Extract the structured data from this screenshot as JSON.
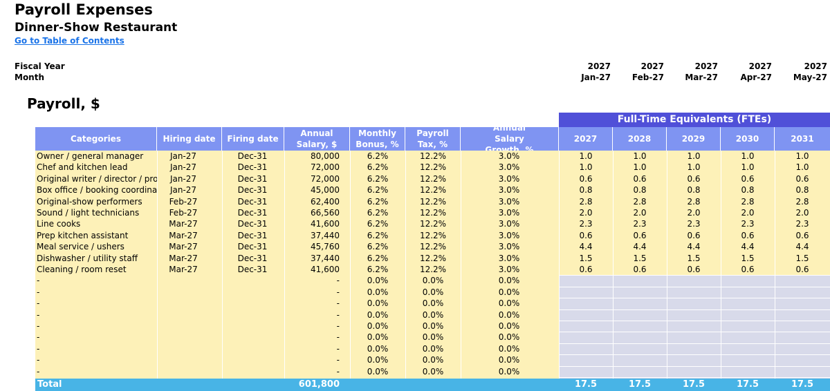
{
  "header": {
    "title": "Payroll Expenses",
    "subtitle": "Dinner-Show Restaurant",
    "toc_link": "Go to Table of Contents",
    "fiscal_year_label": "Fiscal Year",
    "month_label": "Month",
    "fiscal_years": [
      "2027",
      "2027",
      "2027",
      "2027",
      "2027"
    ],
    "months": [
      "Jan-27",
      "Feb-27",
      "Mar-27",
      "Apr-27",
      "May-27"
    ]
  },
  "section_title": "Payroll, $",
  "fte_band_title": "Full-Time Equivalents (FTEs)",
  "columns": {
    "categories": "Categories",
    "hiring": "Hiring date",
    "firing": "Firing date",
    "salary": "Annual Salary, $",
    "bonus": "Monthly Bonus, %",
    "tax": "Payroll Tax, %",
    "growth": "Annual Salary Growth, %",
    "fte_years": [
      "2027",
      "2028",
      "2029",
      "2030",
      "2031"
    ]
  },
  "rows": [
    {
      "cat": "Owner / general manager",
      "hire": "Jan-27",
      "fire": "Dec-31",
      "salary": "80,000",
      "bonus": "6.2%",
      "tax": "12.2%",
      "growth": "3.0%",
      "fte": [
        "1.0",
        "1.0",
        "1.0",
        "1.0",
        "1.0"
      ]
    },
    {
      "cat": "Chef and kitchen lead",
      "hire": "Jan-27",
      "fire": "Dec-31",
      "salary": "72,000",
      "bonus": "6.2%",
      "tax": "12.2%",
      "growth": "3.0%",
      "fte": [
        "1.0",
        "1.0",
        "1.0",
        "1.0",
        "1.0"
      ]
    },
    {
      "cat": "Original writer / director / produ",
      "hire": "Jan-27",
      "fire": "Dec-31",
      "salary": "72,000",
      "bonus": "6.2%",
      "tax": "12.2%",
      "growth": "3.0%",
      "fte": [
        "0.6",
        "0.6",
        "0.6",
        "0.6",
        "0.6"
      ]
    },
    {
      "cat": "Box office / booking coordinator",
      "hire": "Jan-27",
      "fire": "Dec-31",
      "salary": "45,000",
      "bonus": "6.2%",
      "tax": "12.2%",
      "growth": "3.0%",
      "fte": [
        "0.8",
        "0.8",
        "0.8",
        "0.8",
        "0.8"
      ]
    },
    {
      "cat": "Original-show performers",
      "hire": "Feb-27",
      "fire": "Dec-31",
      "salary": "62,400",
      "bonus": "6.2%",
      "tax": "12.2%",
      "growth": "3.0%",
      "fte": [
        "2.8",
        "2.8",
        "2.8",
        "2.8",
        "2.8"
      ]
    },
    {
      "cat": "Sound / light technicians",
      "hire": "Feb-27",
      "fire": "Dec-31",
      "salary": "66,560",
      "bonus": "6.2%",
      "tax": "12.2%",
      "growth": "3.0%",
      "fte": [
        "2.0",
        "2.0",
        "2.0",
        "2.0",
        "2.0"
      ]
    },
    {
      "cat": "Line cooks",
      "hire": "Mar-27",
      "fire": "Dec-31",
      "salary": "41,600",
      "bonus": "6.2%",
      "tax": "12.2%",
      "growth": "3.0%",
      "fte": [
        "2.3",
        "2.3",
        "2.3",
        "2.3",
        "2.3"
      ]
    },
    {
      "cat": "Prep kitchen assistant",
      "hire": "Mar-27",
      "fire": "Dec-31",
      "salary": "37,440",
      "bonus": "6.2%",
      "tax": "12.2%",
      "growth": "3.0%",
      "fte": [
        "0.6",
        "0.6",
        "0.6",
        "0.6",
        "0.6"
      ]
    },
    {
      "cat": "Meal service / ushers",
      "hire": "Mar-27",
      "fire": "Dec-31",
      "salary": "45,760",
      "bonus": "6.2%",
      "tax": "12.2%",
      "growth": "3.0%",
      "fte": [
        "4.4",
        "4.4",
        "4.4",
        "4.4",
        "4.4"
      ]
    },
    {
      "cat": "Dishwasher / utility staff",
      "hire": "Mar-27",
      "fire": "Dec-31",
      "salary": "37,440",
      "bonus": "6.2%",
      "tax": "12.2%",
      "growth": "3.0%",
      "fte": [
        "1.5",
        "1.5",
        "1.5",
        "1.5",
        "1.5"
      ]
    },
    {
      "cat": "Cleaning / room reset",
      "hire": "Mar-27",
      "fire": "Dec-31",
      "salary": "41,600",
      "bonus": "6.2%",
      "tax": "12.2%",
      "growth": "3.0%",
      "fte": [
        "0.6",
        "0.6",
        "0.6",
        "0.6",
        "0.6"
      ]
    },
    {
      "cat": "-",
      "hire": "",
      "fire": "",
      "salary": "-",
      "bonus": "0.0%",
      "tax": "0.0%",
      "growth": "0.0%",
      "fte": [
        "",
        "",
        "",
        "",
        ""
      ]
    },
    {
      "cat": "-",
      "hire": "",
      "fire": "",
      "salary": "-",
      "bonus": "0.0%",
      "tax": "0.0%",
      "growth": "0.0%",
      "fte": [
        "",
        "",
        "",
        "",
        ""
      ]
    },
    {
      "cat": "-",
      "hire": "",
      "fire": "",
      "salary": "-",
      "bonus": "0.0%",
      "tax": "0.0%",
      "growth": "0.0%",
      "fte": [
        "",
        "",
        "",
        "",
        ""
      ]
    },
    {
      "cat": "-",
      "hire": "",
      "fire": "",
      "salary": "-",
      "bonus": "0.0%",
      "tax": "0.0%",
      "growth": "0.0%",
      "fte": [
        "",
        "",
        "",
        "",
        ""
      ]
    },
    {
      "cat": "-",
      "hire": "",
      "fire": "",
      "salary": "-",
      "bonus": "0.0%",
      "tax": "0.0%",
      "growth": "0.0%",
      "fte": [
        "",
        "",
        "",
        "",
        ""
      ]
    },
    {
      "cat": "-",
      "hire": "",
      "fire": "",
      "salary": "-",
      "bonus": "0.0%",
      "tax": "0.0%",
      "growth": "0.0%",
      "fte": [
        "",
        "",
        "",
        "",
        ""
      ]
    },
    {
      "cat": "-",
      "hire": "",
      "fire": "",
      "salary": "-",
      "bonus": "0.0%",
      "tax": "0.0%",
      "growth": "0.0%",
      "fte": [
        "",
        "",
        "",
        "",
        ""
      ]
    },
    {
      "cat": "-",
      "hire": "",
      "fire": "",
      "salary": "-",
      "bonus": "0.0%",
      "tax": "0.0%",
      "growth": "0.0%",
      "fte": [
        "",
        "",
        "",
        "",
        ""
      ]
    },
    {
      "cat": "-",
      "hire": "",
      "fire": "",
      "salary": "-",
      "bonus": "0.0%",
      "tax": "0.0%",
      "growth": "0.0%",
      "fte": [
        "",
        "",
        "",
        "",
        ""
      ]
    }
  ],
  "total": {
    "label": "Total",
    "salary": "601,800",
    "fte": [
      "17.5",
      "17.5",
      "17.5",
      "17.5",
      "17.5"
    ]
  },
  "colors": {
    "header_blue": "#7f94f2",
    "fte_band": "#5050d8",
    "input_yellow": "#fdf1b8",
    "blank_fte": "#d8daea",
    "total_bar": "#48b4e6",
    "link": "#1a73e8"
  }
}
